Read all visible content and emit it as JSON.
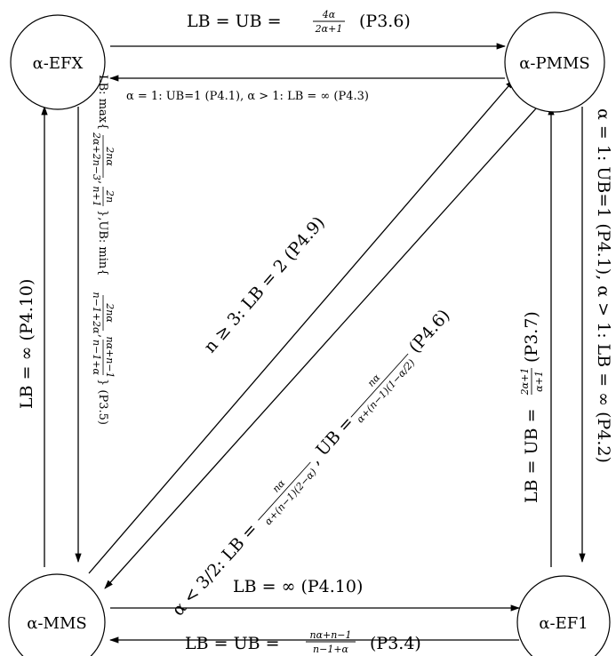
{
  "nodes": {
    "efx": "α-EFX",
    "pmms": "α-PMMS",
    "mms": "α-MMS",
    "ef1": "α-EF1"
  },
  "edges": {
    "efx_to_pmms": {
      "prefix": "LB = UB = ",
      "frac_num": "4α",
      "frac_den": "2α+1",
      "ref": "(P3.6)"
    },
    "pmms_to_efx": {
      "text": "α = 1: UB=1 (P4.1), α > 1: LB = ∞ (P4.3)"
    },
    "efx_to_mms": {
      "part1": "LB: max{",
      "f1_num": "2nα",
      "f1_den": "2α+2n−3",
      "f2_num": "2n",
      "f2_den": "n+1",
      "part2": "},UB: min{",
      "f3_num": "2nα",
      "f3_den": "n−1+2α",
      "f4_num": "nα+n−1",
      "f4_den": "n−1+α",
      "part3": "} (P3.5)"
    },
    "mms_to_efx": {
      "text": "LB = ∞ (P4.10)"
    },
    "mms_to_pmms": {
      "text": "n ≥ 3: LB = 2 (P4.9)"
    },
    "pmms_to_mms": {
      "prefix": "α < 3/2: LB = ",
      "f1_num": "nα",
      "f1_den": "α+(n−1)(2−α)",
      "mid": ", UB = ",
      "f2_num": "nα",
      "f2_den": "α+(n−1)(1−α/2)",
      "ref": "(P4.6)"
    },
    "ef1_to_pmms": {
      "prefix": "LB = UB = ",
      "frac_num": "2α+1",
      "frac_den": "α+1",
      "ref": "(P3.7)"
    },
    "pmms_to_ef1": {
      "text": "α = 1: UB=1 (P4.1), α > 1: LB = ∞ (P4.2)"
    },
    "mms_to_ef1": {
      "text": "LB = ∞ (P4.10)"
    },
    "ef1_to_mms": {
      "prefix": "LB = UB = ",
      "frac_num": "nα+n−1",
      "frac_den": "n−1+α",
      "ref": "(P3.4)"
    }
  }
}
